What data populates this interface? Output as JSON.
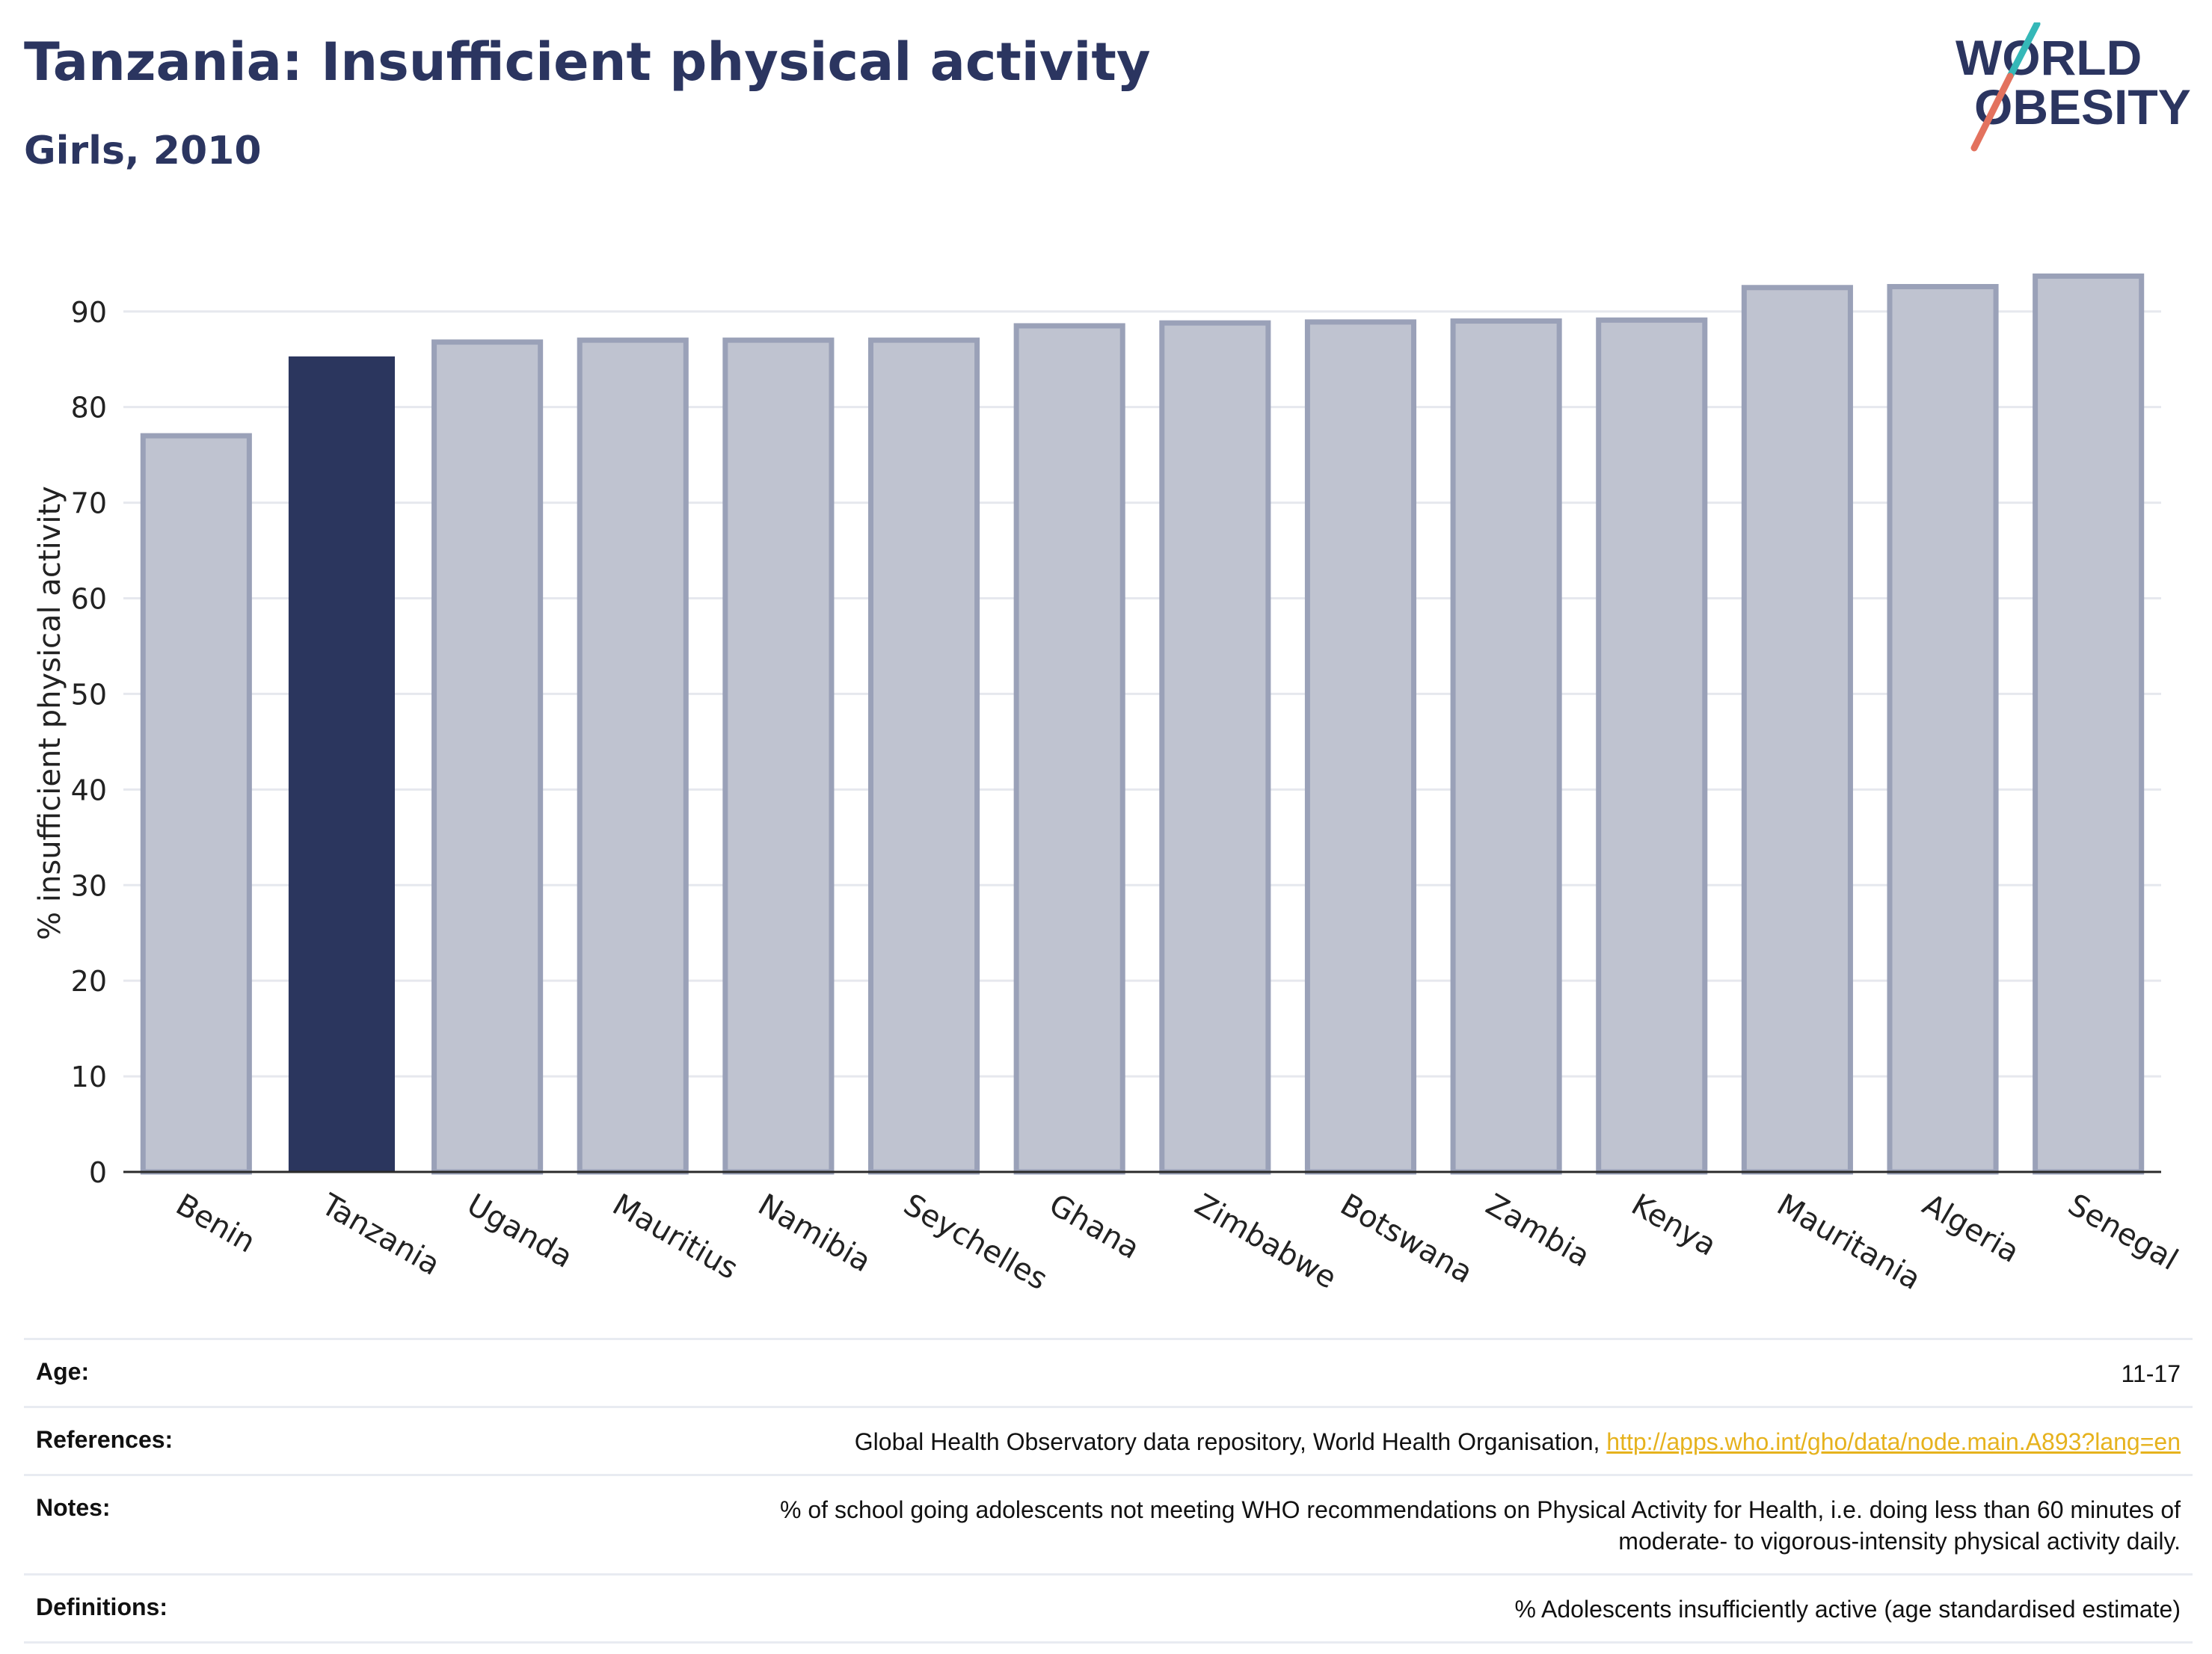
{
  "header": {
    "title": "Tanzania: Insufficient physical activity",
    "subtitle": "Girls, 2010"
  },
  "logo": {
    "line1": "WORLD",
    "line2": "OBESITY"
  },
  "colors": {
    "highlight": "#2b365e",
    "bar_fill": "#bfc3d0",
    "bar_stroke": "#9aa1b8",
    "grid": "#e6e8ee",
    "axis": "#2b2b2b",
    "logo_text": "#2b3560",
    "logo_slash_top": "#35b8b8",
    "logo_slash_bottom": "#e3725e",
    "link": "#e6b21d"
  },
  "chart_data": {
    "type": "bar",
    "title": "Tanzania: Insufficient physical activity",
    "subtitle": "Girls, 2010",
    "xlabel": "",
    "ylabel": "% insufficient physical activity",
    "categories": [
      "Benin",
      "Tanzania",
      "Uganda",
      "Mauritius",
      "Namibia",
      "Seychelles",
      "Ghana",
      "Zimbabwe",
      "Botswana",
      "Zambia",
      "Kenya",
      "Mauritania",
      "Algeria",
      "Senegal"
    ],
    "values": [
      77.0,
      85.3,
      86.8,
      87.0,
      87.0,
      87.0,
      88.5,
      88.8,
      88.9,
      89.0,
      89.1,
      92.5,
      92.6,
      93.7
    ],
    "highlight_category": "Tanzania",
    "ylim": [
      0,
      96
    ],
    "yticks": [
      0,
      10,
      20,
      30,
      40,
      50,
      60,
      70,
      80,
      90
    ],
    "grid": true,
    "legend": "none"
  },
  "meta": {
    "age_label": "Age:",
    "age_value": "11-17",
    "references_label": "References:",
    "references_text": "Global Health Observatory data repository, World Health Organisation, ",
    "references_link": "http://apps.who.int/gho/data/node.main.A893?lang=en",
    "notes_label": "Notes:",
    "notes_line1": "% of school going adolescents not meeting WHO recommendations on Physical Activity for Health, i.e. doing less than 60 minutes of",
    "notes_line2": "moderate- to vigorous-intensity physical activity daily.",
    "definitions_label": "Definitions:",
    "definitions_value": "% Adolescents insufficiently active (age standardised estimate)"
  }
}
